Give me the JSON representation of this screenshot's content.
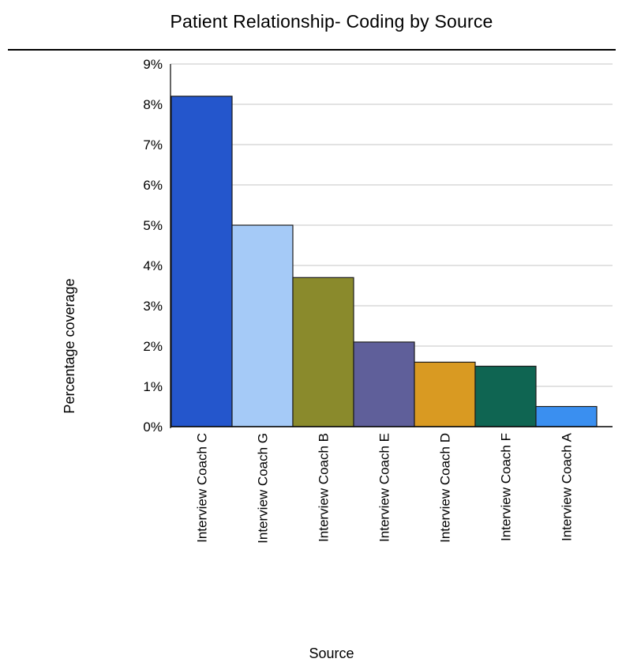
{
  "chart_data": {
    "type": "bar",
    "title": "Patient Relationship- Coding by Source",
    "xlabel": "Source",
    "ylabel": "Percentage coverage",
    "categories": [
      "Interview Coach C",
      "Interview Coach G",
      "Interview Coach B",
      "Interview Coach E",
      "Interview Coach D",
      "Interview Coach F",
      "Interview Coach A"
    ],
    "values": [
      8.2,
      5.0,
      3.7,
      2.1,
      1.6,
      1.5,
      0.5
    ],
    "colors": [
      "#2456cc",
      "#a5caf7",
      "#8a8a2c",
      "#5f5f9a",
      "#d99a22",
      "#0f6552",
      "#3a8ff0"
    ],
    "ylim": [
      0,
      9
    ],
    "yticks": [
      "0%",
      "1%",
      "2%",
      "3%",
      "4%",
      "5%",
      "6%",
      "7%",
      "8%",
      "9%"
    ],
    "grid": true,
    "legend": "none"
  }
}
